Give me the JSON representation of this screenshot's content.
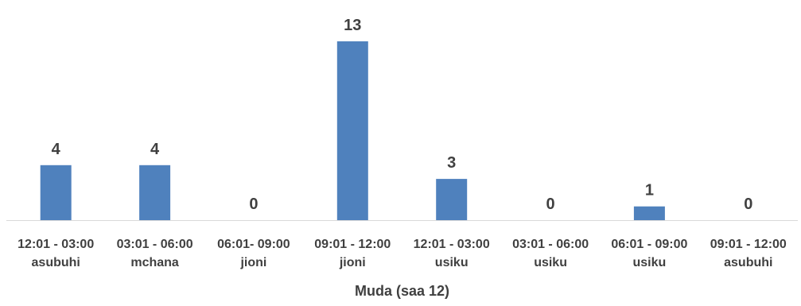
{
  "chart_data": {
    "type": "bar",
    "title": "",
    "xlabel": "Muda (saa 12)",
    "ylabel": "",
    "categories": [
      [
        "12:01 - 03:00",
        "asubuhi"
      ],
      [
        "03:01 - 06:00",
        "mchana"
      ],
      [
        "06:01- 09:00",
        "jioni"
      ],
      [
        "09:01 - 12:00",
        "jioni"
      ],
      [
        "12:01 - 03:00",
        "usiku"
      ],
      [
        "03:01 - 06:00",
        "usiku"
      ],
      [
        "06:01 - 09:00",
        "usiku"
      ],
      [
        "09:01 - 12:00",
        "asubuhi"
      ]
    ],
    "values": [
      4,
      4,
      0,
      13,
      3,
      0,
      1,
      0
    ],
    "ylim": [
      0,
      13
    ],
    "grid": false,
    "legend": "none",
    "bar_color": "#4f81bd",
    "axis_color": "#d9d9d9",
    "label_color": "#404040"
  }
}
